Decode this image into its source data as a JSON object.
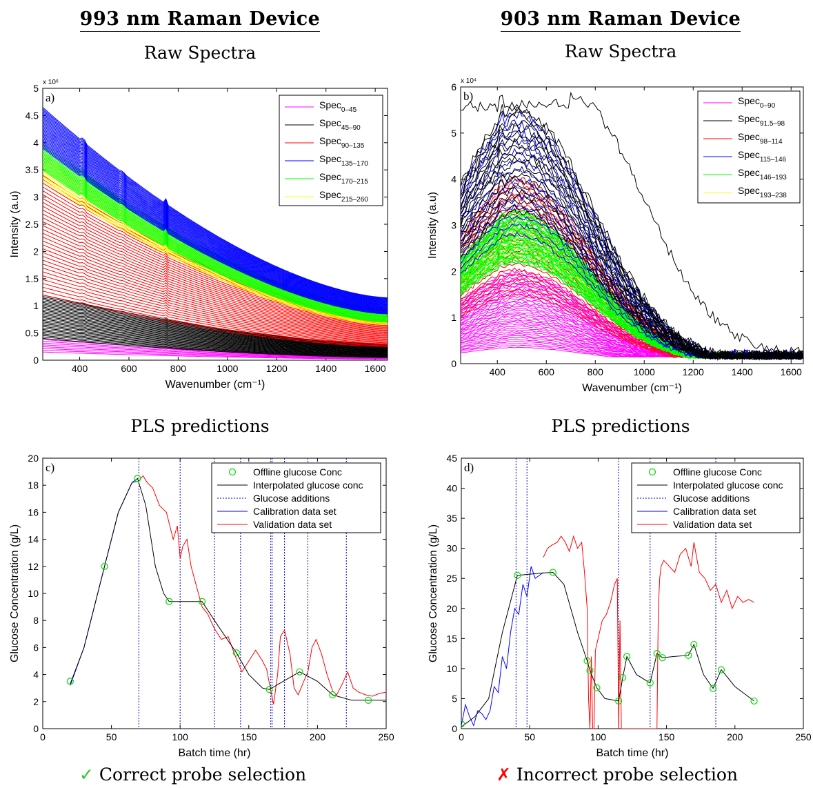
{
  "headings": {
    "left": "993 nm Raman Device",
    "right": "903 nm Raman Device"
  },
  "subtitles": {
    "left_top": "Raw Spectra",
    "right_top": "Raw Spectra",
    "left_bottom": "PLS predictions",
    "right_bottom": "PLS predictions"
  },
  "verdicts": {
    "left": {
      "icon": "check-icon",
      "text": "Correct probe selection",
      "color": "#22cc22"
    },
    "right": {
      "icon": "cross-icon",
      "text": "Incorrect probe selection",
      "color": "#ff0000"
    }
  },
  "chart_data": [
    {
      "id": "a",
      "type": "line",
      "panel_label": "a)",
      "xlabel": "Wavenumber (cm⁻¹)",
      "ylabel": "Intensity (a.u)",
      "xlim": [
        250,
        1650
      ],
      "ylim": [
        0,
        5
      ],
      "y_multiplier": "x 10⁶",
      "xticks": [
        400,
        600,
        800,
        1000,
        1200,
        1400,
        1600
      ],
      "yticks": [
        0,
        0.5,
        1,
        1.5,
        2,
        2.5,
        3,
        3.5,
        4,
        4.5,
        5
      ],
      "legend_position": "top-right",
      "series": [
        {
          "name": "Spec",
          "sub": "0–45",
          "color": "#ff00ff",
          "y_at_250": [
            0.15,
            0.38
          ],
          "y_at_1650": [
            0.02,
            0.08
          ]
        },
        {
          "name": "Spec",
          "sub": "45–90",
          "color": "#000000",
          "y_at_250": [
            0.4,
            1.2
          ],
          "y_at_1650": [
            0.05,
            0.3
          ]
        },
        {
          "name": "Spec",
          "sub": "90–135",
          "color": "#ff0000",
          "y_at_250": [
            1.2,
            3.4
          ],
          "y_at_1650": [
            0.25,
            0.8
          ]
        },
        {
          "name": "Spec",
          "sub": "135–170",
          "color": "#0000ff",
          "y_at_250": [
            3.9,
            4.65
          ],
          "y_at_1650": [
            0.85,
            1.15
          ]
        },
        {
          "name": "Spec",
          "sub": "170–215",
          "color": "#00ff00",
          "y_at_250": [
            3.5,
            4.0
          ],
          "y_at_1650": [
            0.7,
            0.95
          ]
        },
        {
          "name": "Spec",
          "sub": "215–260",
          "color": "#ffff00",
          "y_at_250": [
            3.3,
            3.8
          ],
          "y_at_1650": [
            0.65,
            0.85
          ]
        }
      ]
    },
    {
      "id": "b",
      "type": "line",
      "panel_label": "b)",
      "xlabel": "Wavenumber (cm⁻¹)",
      "ylabel": "Intensity (a.u)",
      "xlim": [
        250,
        1650
      ],
      "ylim": [
        0,
        6
      ],
      "y_multiplier": "x 10⁴",
      "xticks": [
        400,
        600,
        800,
        1000,
        1200,
        1400,
        1600
      ],
      "yticks": [
        0,
        1,
        2,
        3,
        4,
        5,
        6
      ],
      "legend_position": "top-right",
      "series": [
        {
          "name": "Spec",
          "sub": "0–90",
          "color": "#ff00ff",
          "peak": [
            0.35,
            2.0
          ]
        },
        {
          "name": "Spec",
          "sub": "91.5–98",
          "color": "#000000",
          "peak": [
            3.3,
            5.7
          ]
        },
        {
          "name": "Spec",
          "sub": "98–114",
          "color": "#ff0000",
          "peak": [
            1.5,
            4.0
          ]
        },
        {
          "name": "Spec",
          "sub": "115–146",
          "color": "#0000ff",
          "peak": [
            2.8,
            5.4
          ]
        },
        {
          "name": "Spec",
          "sub": "146–193",
          "color": "#00ff00",
          "peak": [
            2.2,
            3.3
          ]
        },
        {
          "name": "Spec",
          "sub": "193–238",
          "color": "#ffff00",
          "peak": [
            2.3,
            3.0
          ]
        }
      ]
    },
    {
      "id": "c",
      "type": "line",
      "panel_label": "c)",
      "xlabel": "Batch time (hr)",
      "ylabel": "Glucose Concentration (g/L)",
      "xlim": [
        0,
        250
      ],
      "ylim": [
        0,
        20
      ],
      "xticks": [
        0,
        50,
        100,
        150,
        200,
        250
      ],
      "yticks": [
        0,
        2,
        4,
        6,
        8,
        10,
        12,
        14,
        16,
        18,
        20
      ],
      "legend_position": "top-right",
      "legend": [
        "Offline glucose Conc",
        "Interpolated glucose conc",
        "Glucose additions",
        "Calibration data set",
        "Validation data set"
      ],
      "offline": {
        "x": [
          20,
          45,
          69,
          92,
          116,
          141,
          165,
          187,
          211,
          237
        ],
        "y": [
          3.5,
          12,
          18.5,
          9.4,
          9.4,
          5.6,
          2.9,
          4.2,
          2.5,
          2.1
        ]
      },
      "interpolated": {
        "x": [
          20,
          30,
          45,
          55,
          65,
          69,
          75,
          82,
          88,
          92,
          100,
          110,
          116,
          125,
          135,
          141,
          150,
          160,
          165,
          175,
          187,
          200,
          211,
          225,
          237,
          250
        ],
        "y": [
          3.3,
          6,
          12,
          16,
          18.2,
          18.5,
          16.5,
          12,
          10,
          9.4,
          9.4,
          9.4,
          9.4,
          8,
          6.5,
          5.6,
          4,
          3,
          2.9,
          3.5,
          4.2,
          3.5,
          2.5,
          2.1,
          2.1,
          2.1
        ]
      },
      "additions": [
        70,
        100,
        125,
        144,
        166,
        167,
        176,
        193,
        221
      ],
      "calibration": {
        "x": [
          20,
          30,
          45,
          55,
          65,
          70
        ],
        "y": [
          3.2,
          6,
          12,
          16,
          18.2,
          18.3
        ]
      },
      "validation": {
        "x": [
          70,
          73,
          76,
          80,
          85,
          90,
          95,
          98,
          100,
          102,
          105,
          108,
          112,
          116,
          120,
          125,
          130,
          135,
          140,
          145,
          150,
          155,
          160,
          163,
          166,
          168,
          171,
          173,
          176,
          180,
          183,
          186,
          190,
          193,
          196,
          199,
          203,
          207,
          211,
          214,
          218,
          222,
          226,
          230,
          235,
          240,
          245,
          250
        ],
        "y": [
          18.3,
          18.7,
          18.2,
          17.8,
          16.5,
          16,
          14,
          15,
          12.6,
          13.5,
          14,
          12,
          10.5,
          9,
          8.5,
          7.4,
          6.6,
          6.8,
          5.4,
          4.2,
          5,
          5.8,
          5,
          4.4,
          2.8,
          1.8,
          4,
          6.8,
          7.3,
          5.5,
          3,
          2.5,
          3.5,
          4.2,
          6,
          6.6,
          5.5,
          4,
          2.8,
          2.5,
          3.3,
          4.2,
          3,
          2.7,
          2.5,
          2.4,
          2.6,
          2.7
        ]
      }
    },
    {
      "id": "d",
      "type": "line",
      "panel_label": "d)",
      "xlabel": "Batch time (hr)",
      "ylabel": "Glucose Concentration (g/L)",
      "xlim": [
        0,
        250
      ],
      "ylim": [
        0,
        45
      ],
      "xticks": [
        0,
        50,
        100,
        150,
        200,
        250
      ],
      "yticks": [
        0,
        5,
        10,
        15,
        20,
        25,
        30,
        35,
        40,
        45
      ],
      "legend_position": "top-right",
      "legend": [
        "Offline glucose Conc",
        "Interpolated glucose conc",
        "Glucose additions",
        "Calibration data set",
        "Validation data set"
      ],
      "offline": {
        "x": [
          0,
          41,
          67,
          92,
          94,
          99,
          115,
          118,
          121,
          138,
          143,
          147,
          166,
          170,
          184,
          190,
          214
        ],
        "y": [
          0.8,
          25.5,
          26,
          11.3,
          9.7,
          6.8,
          4.6,
          8.5,
          12,
          7.6,
          12.5,
          11.8,
          12.2,
          14,
          6.7,
          9.8,
          4.6
        ]
      },
      "interpolated": {
        "x": [
          0,
          10,
          20,
          30,
          41,
          50,
          60,
          67,
          75,
          85,
          92,
          94,
          99,
          105,
          115,
          118,
          121,
          128,
          138,
          143,
          147,
          155,
          166,
          170,
          177,
          184,
          190,
          200,
          214
        ],
        "y": [
          0.3,
          2,
          5,
          16,
          25.5,
          25.7,
          25.9,
          26,
          24,
          16,
          11.3,
          9.7,
          6.8,
          5,
          4.6,
          8.5,
          12,
          9,
          7.6,
          12.5,
          11.8,
          12,
          12.2,
          14,
          9,
          6.7,
          9.8,
          7,
          4.6
        ]
      },
      "additions": [
        40,
        48,
        115,
        138,
        186
      ],
      "calibration": {
        "x": [
          0,
          3,
          6,
          9,
          12,
          15,
          18,
          21,
          24,
          27,
          30,
          33,
          36,
          39,
          42,
          45,
          48,
          51,
          54,
          57,
          60
        ],
        "y": [
          0.5,
          4,
          2,
          0.5,
          3,
          2.5,
          1.5,
          3,
          7,
          6,
          12,
          10,
          16,
          20,
          19,
          24,
          22,
          27,
          25,
          25.5,
          26
        ]
      },
      "validation": {
        "x": [
          60,
          63,
          66,
          70,
          73,
          76,
          79,
          82,
          85,
          88,
          90,
          92,
          93,
          94,
          95,
          96,
          97,
          98,
          100,
          103,
          106,
          109,
          112,
          114,
          115,
          116,
          117,
          120,
          125,
          130,
          135,
          140,
          143,
          144,
          145,
          146,
          148,
          152,
          156,
          160,
          164,
          168,
          170,
          174,
          178,
          182,
          186,
          190,
          194,
          198,
          202,
          206,
          210,
          214
        ],
        "y": [
          28.5,
          30,
          30.5,
          31,
          32,
          31,
          29.5,
          32,
          30,
          31,
          26,
          20,
          5,
          0,
          12,
          0,
          0,
          13,
          15,
          18,
          19,
          21,
          24,
          25,
          0,
          18,
          0,
          0,
          0,
          0,
          0,
          0,
          0,
          20,
          25,
          27,
          28,
          27,
          26,
          29,
          30,
          27,
          31,
          26,
          25,
          23,
          24,
          21,
          23,
          20,
          22,
          21,
          21.5,
          21
        ]
      }
    }
  ]
}
